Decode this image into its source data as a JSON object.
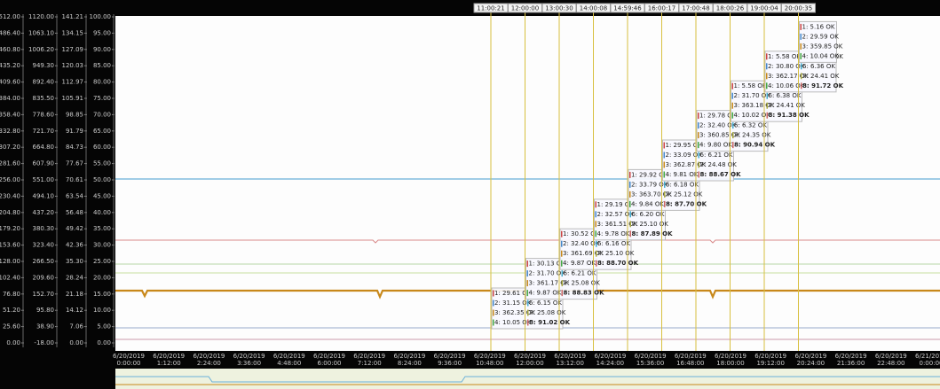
{
  "axes": [
    {
      "ticks": [
        "512.00",
        "486.40",
        "460.80",
        "435.20",
        "409.60",
        "384.00",
        "358.40",
        "332.80",
        "307.20",
        "281.60",
        "256.00",
        "230.40",
        "204.80",
        "179.20",
        "153.60",
        "128.00",
        "102.40",
        "76.80",
        "51.20",
        "25.60",
        "0.00"
      ]
    },
    {
      "ticks": [
        "1120.00",
        "1063.10",
        "1006.20",
        "949.30",
        "892.40",
        "835.50",
        "778.60",
        "721.70",
        "664.80",
        "607.90",
        "551.00",
        "494.10",
        "437.20",
        "380.30",
        "323.40",
        "266.50",
        "209.60",
        "152.70",
        "95.80",
        "38.90",
        "-18.00"
      ]
    },
    {
      "ticks": [
        "141.21",
        "134.15",
        "127.09",
        "120.03",
        "112.97",
        "105.91",
        "98.85",
        "91.79",
        "84.73",
        "77.67",
        "70.61",
        "63.54",
        "56.48",
        "49.42",
        "42.36",
        "35.30",
        "28.24",
        "21.18",
        "14.12",
        "7.06",
        "0.00"
      ]
    },
    {
      "ticks": [
        "100.00",
        "95.00",
        "90.00",
        "85.00",
        "80.00",
        "75.00",
        "70.00",
        "65.00",
        "60.00",
        "55.00",
        "50.00",
        "45.00",
        "40.00",
        "35.00",
        "30.00",
        "25.00",
        "20.00",
        "15.00",
        "10.00",
        "5.00",
        "0.00"
      ]
    }
  ],
  "time_axis": [
    {
      "date": "6/20/2019",
      "time": "0:00:00"
    },
    {
      "date": "6/20/2019",
      "time": "1:12:00"
    },
    {
      "date": "6/20/2019",
      "time": "2:24:00"
    },
    {
      "date": "6/20/2019",
      "time": "3:36:00"
    },
    {
      "date": "6/20/2019",
      "time": "4:48:00"
    },
    {
      "date": "6/20/2019",
      "time": "6:00:00"
    },
    {
      "date": "6/20/2019",
      "time": "7:12:00"
    },
    {
      "date": "6/20/2019",
      "time": "8:24:00"
    },
    {
      "date": "6/20/2019",
      "time": "9:36:00"
    },
    {
      "date": "6/20/2019",
      "time": "10:48:00"
    },
    {
      "date": "6/20/2019",
      "time": "12:00:00"
    },
    {
      "date": "6/20/2019",
      "time": "13:12:00"
    },
    {
      "date": "6/20/2019",
      "time": "14:24:00"
    },
    {
      "date": "6/20/2019",
      "time": "15:36:00"
    },
    {
      "date": "6/20/2019",
      "time": "16:48:00"
    },
    {
      "date": "6/20/2019",
      "time": "18:00:00"
    },
    {
      "date": "6/20/2019",
      "time": "19:12:00"
    },
    {
      "date": "6/20/2019",
      "time": "20:24:00"
    },
    {
      "date": "6/20/2019",
      "time": "21:36:00"
    },
    {
      "date": "6/20/2019",
      "time": "22:48:00"
    },
    {
      "date": "6/21/2019",
      "time": "0:00:00"
    }
  ],
  "cursors": [
    {
      "time": "11:00:21",
      "lines": [
        "1: 29.61 OK",
        "2: 31.15 OK",
        "3: 362.35 OK",
        "4: 10.05 OK",
        "5: 560.06 OK",
        "6: 6.15 OK",
        "7: 25.08 OK",
        "8: 91.02 OK"
      ]
    },
    {
      "time": "12:00:00",
      "lines": [
        "1: 30.13 OK",
        "2: 31.70 OK",
        "3: 361.17 OK",
        "4: 9.87 OK",
        "5: 560.85 OK",
        "6: 6.21 OK",
        "7: 25.08 OK",
        "8: 88.83 OK"
      ]
    },
    {
      "time": "13:00:30",
      "lines": [
        "1: 30.52 OK",
        "2: 32.40 OK",
        "3: 361.69 OK",
        "4: 9.87 OK",
        "5: 559.71 OK",
        "6: 6.16 OK",
        "7: 25.10 OK",
        "8: 88.70 OK"
      ]
    },
    {
      "time": "14:00:08",
      "lines": [
        "1: 29.19 OK",
        "2: 32.57 OK",
        "3: 361.51 OK",
        "4: 9.78 OK",
        "5: 560.58 OK",
        "6: 6.20 OK",
        "7: 25.10 OK",
        "8: 87.89 OK"
      ]
    },
    {
      "time": "14:59:46",
      "lines": [
        "1: 29.92 OK",
        "2: 33.79 OK",
        "3: 363.70 OK",
        "4: 9.84 OK",
        "5: 559.85 OK",
        "6: 6.18 OK",
        "7: 25.12 OK",
        "8: 87.70 OK"
      ]
    },
    {
      "time": "16:00:17",
      "lines": [
        "1: 29.95 OK",
        "2: 33.09 OK",
        "3: 362.87 OK",
        "4: 9.81 OK",
        "5: 560.33 OK",
        "6: 6.21 OK",
        "7: 24.48 OK",
        "8: 88.67 OK"
      ]
    },
    {
      "time": "17:00:48",
      "lines": [
        "1: 29.78 OK",
        "2: 32.40 OK",
        "3: 360.85 OK",
        "4: 9.80 OK",
        "5: 559.76 OK",
        "6: 6.32 OK",
        "7: 24.35 OK",
        "8: 90.94 OK"
      ]
    },
    {
      "time": "18:00:26",
      "lines": [
        "1: 5.58 OK",
        "2: 31.70 OK",
        "3: 363.18 OK",
        "4: 10.02 OK",
        "5: 559.67 OK",
        "6: 6.38 OK",
        "7: 24.41 OK",
        "8: 91.38 OK"
      ]
    },
    {
      "time": "19:00:04",
      "lines": [
        "1: 5.58 OK",
        "2: 30.80 OK",
        "3: 362.17 OK",
        "4: 10.06 OK",
        "5: 559.22 OK",
        "6: 6.36 OK",
        "7: 24.41 OK",
        "8: 91.72 OK"
      ]
    },
    {
      "time": "20:00:35",
      "lines": [
        "1: 5.16 OK",
        "2: 29.59 OK",
        "3: 359.85 OK",
        "4: 10.04 OK"
      ]
    }
  ]
}
